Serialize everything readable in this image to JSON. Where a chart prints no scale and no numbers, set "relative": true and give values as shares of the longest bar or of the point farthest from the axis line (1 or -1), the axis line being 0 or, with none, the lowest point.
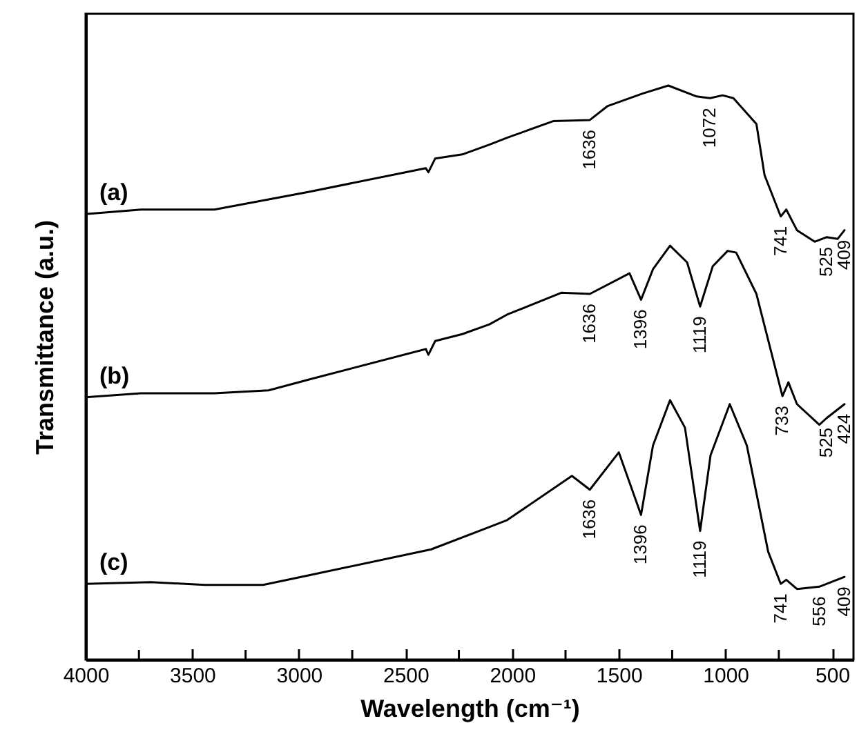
{
  "chart_data": {
    "type": "line",
    "relative": true,
    "xlabel": "Wavelength (cm⁻¹)",
    "ylabel": "Transmittance (a.u.)",
    "xlim": [
      4000,
      400
    ],
    "xticks": [
      4000,
      {
        "value": 3750,
        "label": null
      },
      3500,
      {
        "value": 3250,
        "label": null
      },
      3000,
      {
        "value": 2750,
        "label": null
      },
      2500,
      {
        "value": 2250,
        "label": null
      },
      2000,
      {
        "value": 1750,
        "label": null
      },
      1500,
      {
        "value": 1250,
        "label": null
      },
      1000,
      {
        "value": 750,
        "label": null
      },
      500
    ],
    "grid": false,
    "marker": "none",
    "line_style": "solid",
    "series": [
      {
        "name": "(a)",
        "color": "#000000",
        "x": [
          4000,
          3740,
          3396,
          2952,
          2405,
          2393,
          2361,
          2234,
          2107,
          2024,
          1808,
          1636,
          1554,
          1389,
          1268,
          1135,
          1072,
          1014,
          963,
          855,
          817,
          741,
          715,
          665,
          582,
          525,
          474,
          442
        ],
        "values": [
          0.776,
          0.784,
          0.784,
          0.815,
          0.856,
          0.849,
          0.873,
          0.88,
          0.897,
          0.909,
          0.938,
          0.94,
          0.964,
          0.986,
          1.0,
          0.981,
          0.978,
          0.983,
          0.978,
          0.933,
          0.844,
          0.772,
          0.784,
          0.748,
          0.728,
          0.736,
          0.733,
          0.748
        ]
      },
      {
        "name": "(b)",
        "color": "#000000",
        "x": [
          4000,
          3740,
          3396,
          3142,
          2952,
          2405,
          2393,
          2361,
          2234,
          2107,
          2024,
          1770,
          1636,
          1450,
          1396,
          1340,
          1260,
          1180,
          1119,
          1060,
          990,
          950,
          855,
          733,
          705,
          665,
          560,
          525,
          442
        ],
        "values": [
          0.457,
          0.464,
          0.464,
          0.469,
          0.488,
          0.541,
          0.531,
          0.555,
          0.567,
          0.584,
          0.601,
          0.639,
          0.637,
          0.673,
          0.627,
          0.68,
          0.721,
          0.692,
          0.615,
          0.685,
          0.712,
          0.709,
          0.637,
          0.459,
          0.483,
          0.445,
          0.409,
          0.421,
          0.445
        ]
      },
      {
        "name": "(c)",
        "color": "#000000",
        "x": [
          4000,
          3695,
          3441,
          3168,
          2952,
          2380,
          2107,
          2024,
          1720,
          1636,
          1500,
          1396,
          1340,
          1260,
          1190,
          1119,
          1070,
          980,
          900,
          800,
          741,
          715,
          665,
          560,
          442
        ],
        "values": [
          0.132,
          0.135,
          0.13,
          0.13,
          0.147,
          0.192,
          0.231,
          0.243,
          0.32,
          0.296,
          0.361,
          0.252,
          0.373,
          0.452,
          0.404,
          0.224,
          0.356,
          0.445,
          0.373,
          0.188,
          0.132,
          0.139,
          0.123,
          0.127,
          0.144
        ]
      }
    ],
    "annotations": [
      {
        "text": "1636",
        "x": 1636,
        "y": 0.94
      },
      {
        "text": "1072",
        "x": 1072,
        "y": 0.978
      },
      {
        "text": "741",
        "x": 741,
        "y": 0.772
      },
      {
        "text": "525",
        "x": 525,
        "y": 0.736
      },
      {
        "text": "409",
        "x": 442,
        "y": 0.748
      },
      {
        "text": "1636",
        "x": 1636,
        "y": 0.637
      },
      {
        "text": "1396",
        "x": 1396,
        "y": 0.627
      },
      {
        "text": "1119",
        "x": 1119,
        "y": 0.615
      },
      {
        "text": "733",
        "x": 733,
        "y": 0.459
      },
      {
        "text": "525",
        "x": 525,
        "y": 0.421
      },
      {
        "text": "424",
        "x": 442,
        "y": 0.445
      },
      {
        "text": "1636",
        "x": 1636,
        "y": 0.296
      },
      {
        "text": "1396",
        "x": 1396,
        "y": 0.252
      },
      {
        "text": "1119",
        "x": 1119,
        "y": 0.224
      },
      {
        "text": "741",
        "x": 741,
        "y": 0.132
      },
      {
        "text": "556",
        "x": 560,
        "y": 0.127
      },
      {
        "text": "409",
        "x": 442,
        "y": 0.144
      }
    ]
  }
}
